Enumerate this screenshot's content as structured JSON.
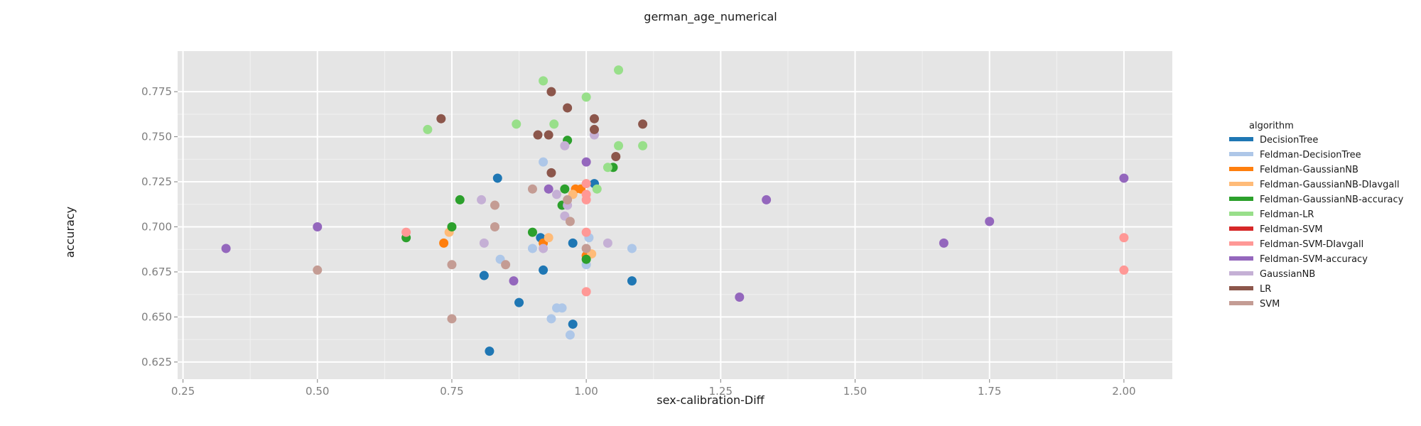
{
  "chart_data": {
    "type": "scatter",
    "title": "german_age_numerical",
    "xlabel": "sex-calibration-Diff",
    "ylabel": "accuracy",
    "xlim": [
      0.24,
      2.09
    ],
    "ylim": [
      0.6155,
      0.7975
    ],
    "x_ticks": [
      "0.25",
      "0.50",
      "0.75",
      "1.00",
      "1.25",
      "1.50",
      "1.75",
      "2.00"
    ],
    "y_ticks": [
      "0.625",
      "0.650",
      "0.675",
      "0.700",
      "0.725",
      "0.750",
      "0.775"
    ],
    "grid": true,
    "legend_title": "algorithm",
    "legend_position": "right",
    "series": [
      {
        "name": "DecisionTree",
        "color": "#1f77b4",
        "points": [
          [
            0.835,
            0.727
          ],
          [
            0.81,
            0.673
          ],
          [
            0.875,
            0.658
          ],
          [
            0.82,
            0.631
          ],
          [
            0.92,
            0.676
          ],
          [
            0.975,
            0.691
          ],
          [
            0.975,
            0.646
          ],
          [
            1.085,
            0.67
          ],
          [
            0.915,
            0.694
          ],
          [
            1.015,
            0.724
          ]
        ]
      },
      {
        "name": "Feldman-DecisionTree",
        "color": "#aec7e8",
        "points": [
          [
            0.84,
            0.682
          ],
          [
            0.9,
            0.688
          ],
          [
            0.92,
            0.736
          ],
          [
            0.935,
            0.649
          ],
          [
            0.945,
            0.655
          ],
          [
            0.955,
            0.655
          ],
          [
            0.97,
            0.64
          ],
          [
            1.0,
            0.679
          ],
          [
            1.005,
            0.694
          ],
          [
            1.085,
            0.688
          ]
        ]
      },
      {
        "name": "Feldman-GaussianNB",
        "color": "#ff7f0e",
        "points": [
          [
            0.735,
            0.691
          ],
          [
            0.92,
            0.691
          ],
          [
            0.98,
            0.721
          ],
          [
            0.99,
            0.721
          ],
          [
            1.0,
            0.684
          ]
        ]
      },
      {
        "name": "Feldman-GaussianNB-DIavgall",
        "color": "#ffbb78",
        "points": [
          [
            0.745,
            0.697
          ],
          [
            0.93,
            0.694
          ],
          [
            0.975,
            0.718
          ],
          [
            1.01,
            0.685
          ]
        ]
      },
      {
        "name": "Feldman-GaussianNB-accuracy",
        "color": "#2ca02c",
        "points": [
          [
            0.665,
            0.694
          ],
          [
            0.75,
            0.7
          ],
          [
            0.765,
            0.715
          ],
          [
            0.9,
            0.697
          ],
          [
            0.955,
            0.712
          ],
          [
            0.96,
            0.721
          ],
          [
            0.965,
            0.748
          ],
          [
            1.0,
            0.682
          ],
          [
            1.05,
            0.733
          ]
        ]
      },
      {
        "name": "Feldman-LR",
        "color": "#98df8a",
        "points": [
          [
            0.705,
            0.754
          ],
          [
            0.87,
            0.757
          ],
          [
            0.92,
            0.781
          ],
          [
            0.94,
            0.757
          ],
          [
            1.0,
            0.772
          ],
          [
            1.02,
            0.721
          ],
          [
            1.04,
            0.733
          ],
          [
            1.06,
            0.787
          ],
          [
            1.06,
            0.745
          ],
          [
            1.105,
            0.745
          ]
        ]
      },
      {
        "name": "Feldman-SVM",
        "color": "#d62728",
        "points": []
      },
      {
        "name": "Feldman-SVM-DIavgall",
        "color": "#ff9896",
        "points": [
          [
            0.665,
            0.697
          ],
          [
            1.0,
            0.724
          ],
          [
            1.0,
            0.718
          ],
          [
            1.0,
            0.715
          ],
          [
            1.0,
            0.697
          ],
          [
            1.0,
            0.664
          ],
          [
            2.0,
            0.694
          ],
          [
            2.0,
            0.676
          ]
        ]
      },
      {
        "name": "Feldman-SVM-accuracy",
        "color": "#9467bd",
        "points": [
          [
            0.33,
            0.688
          ],
          [
            0.5,
            0.7
          ],
          [
            0.865,
            0.67
          ],
          [
            0.93,
            0.721
          ],
          [
            1.0,
            0.736
          ],
          [
            1.285,
            0.661
          ],
          [
            1.335,
            0.715
          ],
          [
            1.665,
            0.691
          ],
          [
            1.75,
            0.703
          ],
          [
            2.0,
            0.727
          ]
        ]
      },
      {
        "name": "GaussianNB",
        "color": "#c5b0d5",
        "points": [
          [
            0.805,
            0.715
          ],
          [
            0.81,
            0.691
          ],
          [
            0.945,
            0.718
          ],
          [
            0.96,
            0.745
          ],
          [
            0.965,
            0.712
          ],
          [
            0.96,
            0.706
          ],
          [
            0.92,
            0.688
          ],
          [
            1.015,
            0.751
          ],
          [
            1.04,
            0.691
          ]
        ]
      },
      {
        "name": "LR",
        "color": "#8c564b",
        "points": [
          [
            0.73,
            0.76
          ],
          [
            0.91,
            0.751
          ],
          [
            0.93,
            0.751
          ],
          [
            0.935,
            0.775
          ],
          [
            0.935,
            0.73
          ],
          [
            0.965,
            0.766
          ],
          [
            1.015,
            0.76
          ],
          [
            1.015,
            0.754
          ],
          [
            1.055,
            0.739
          ],
          [
            1.105,
            0.757
          ]
        ]
      },
      {
        "name": "SVM",
        "color": "#c49c94",
        "points": [
          [
            0.5,
            0.676
          ],
          [
            0.75,
            0.679
          ],
          [
            0.75,
            0.649
          ],
          [
            0.83,
            0.712
          ],
          [
            0.83,
            0.7
          ],
          [
            0.85,
            0.679
          ],
          [
            0.9,
            0.721
          ],
          [
            0.965,
            0.715
          ],
          [
            0.97,
            0.703
          ],
          [
            1.0,
            0.688
          ]
        ]
      }
    ]
  }
}
